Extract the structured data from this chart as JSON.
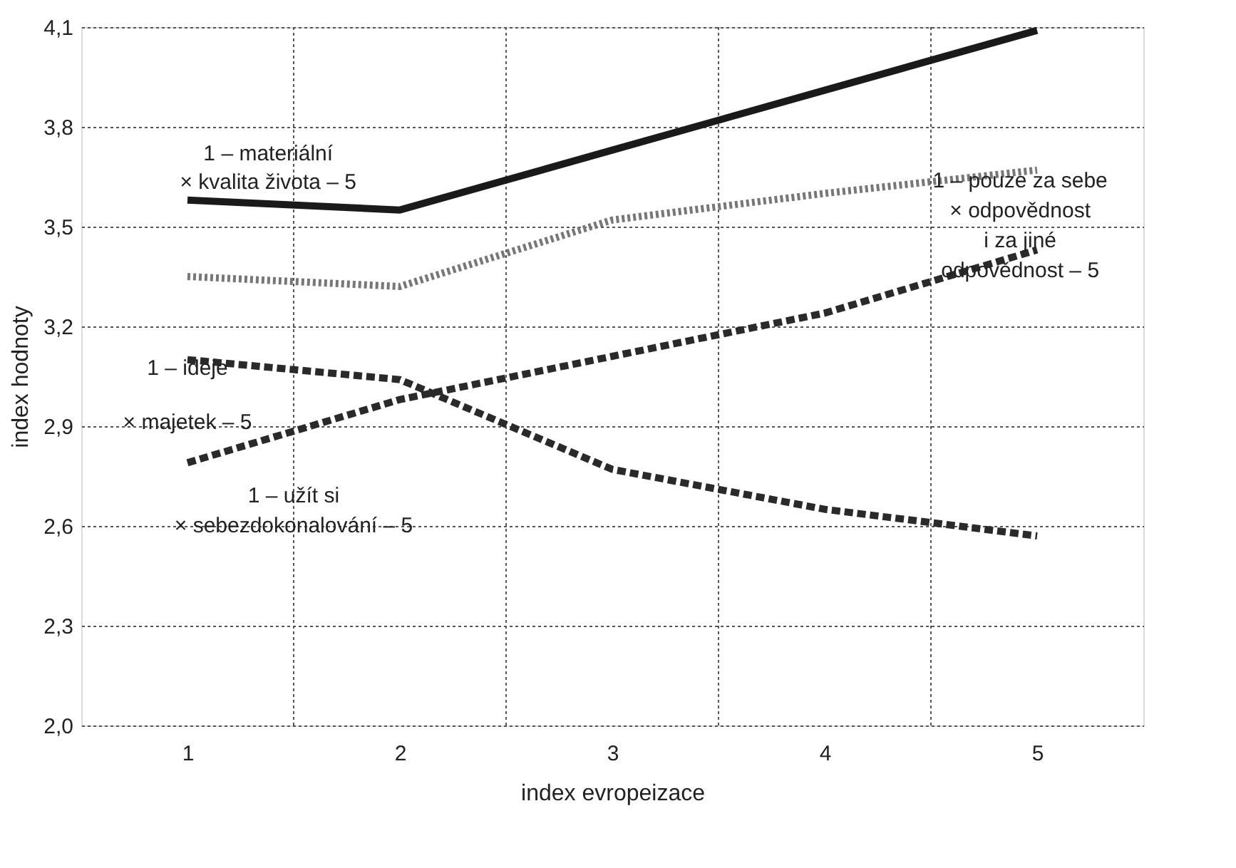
{
  "chart_data": {
    "type": "line",
    "xlabel": "index evropeizace",
    "ylabel": "index hodnoty",
    "x": [
      1,
      2,
      3,
      4,
      5
    ],
    "xlim": [
      0.5,
      5.5
    ],
    "xticks": [
      1,
      2,
      3,
      4,
      5
    ],
    "ylim": [
      2.0,
      4.1
    ],
    "yticks": [
      {
        "value": 2.0,
        "label": "2,0"
      },
      {
        "value": 2.3,
        "label": "2,3"
      },
      {
        "value": 2.6,
        "label": "2,6"
      },
      {
        "value": 2.9,
        "label": "2,9"
      },
      {
        "value": 3.2,
        "label": "3,2"
      },
      {
        "value": 3.5,
        "label": "3,5"
      },
      {
        "value": 3.8,
        "label": "3,8"
      },
      {
        "value": 4.1,
        "label": "4,1"
      }
    ],
    "grid": "y",
    "marker": "none",
    "series": [
      {
        "color": "#1a1a1a",
        "line_style": "solid",
        "values": [
          3.58,
          3.55,
          3.73,
          3.91,
          4.09
        ]
      },
      {
        "color": "#777777",
        "line_style": "dotted",
        "values": [
          3.35,
          3.32,
          3.52,
          3.6,
          3.67
        ]
      },
      {
        "color": "#2a2a2a",
        "line_style": "dashed",
        "values": [
          2.79,
          2.98,
          3.11,
          3.24,
          3.43
        ]
      },
      {
        "color": "#2a2a2a",
        "line_style": "dashed",
        "values": [
          3.1,
          3.04,
          2.77,
          2.65,
          2.57
        ]
      }
    ],
    "ref_lines": [
      {
        "axis": "x",
        "value": 1.5,
        "line_style": "dotted",
        "color": "#555555"
      },
      {
        "axis": "x",
        "value": 2.5,
        "line_style": "dotted",
        "color": "#555555"
      },
      {
        "axis": "x",
        "value": 3.5,
        "line_style": "dotted",
        "color": "#555555"
      },
      {
        "axis": "x",
        "value": 4.5,
        "line_style": "dotted",
        "color": "#555555"
      }
    ],
    "annotations": [
      "1 – materiální\n× kvalita života – 5",
      "1 – pouze za sebe\n× odpovědnost\ni za jiné\nodpovědnost – 5",
      "1 – ideje\n× majetek – 5",
      "1 – užít si\n× sebezdokonalování – 5"
    ]
  }
}
